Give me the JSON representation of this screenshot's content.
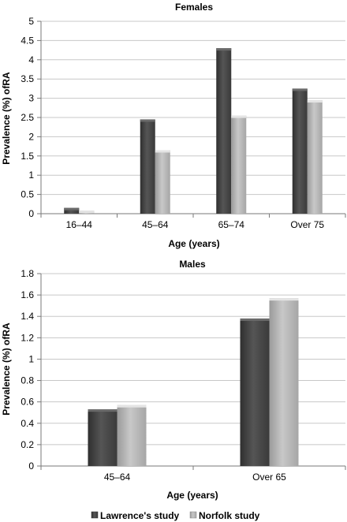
{
  "chart_data": [
    {
      "type": "bar",
      "title": "Females",
      "categories": [
        "16–44",
        "45–64",
        "65–74",
        "Over 75"
      ],
      "series": [
        {
          "name": "Lawrence's study",
          "values": [
            0.15,
            2.45,
            4.3,
            3.25
          ]
        },
        {
          "name": "Norfolk study",
          "values": [
            0.08,
            1.65,
            2.55,
            2.95
          ]
        }
      ],
      "xlabel": "Age (years)",
      "ylabel": "Prevalence (%) ofRA",
      "ylim": [
        0,
        5
      ],
      "yticks": [
        "0",
        "0.5",
        "1",
        "1.5",
        "2",
        "2.5",
        "3",
        "3.5",
        "4",
        "4.5",
        "5"
      ],
      "grid": true
    },
    {
      "type": "bar",
      "title": "Males",
      "categories": [
        "45–64",
        "Over 65"
      ],
      "series": [
        {
          "name": "Lawrence's study",
          "values": [
            0.53,
            1.38
          ]
        },
        {
          "name": "Norfolk study",
          "values": [
            0.57,
            1.57
          ]
        }
      ],
      "xlabel": "Age (years)",
      "ylabel": "Prevalence (%) ofRA",
      "ylim": [
        0,
        1.8
      ],
      "yticks": [
        "0",
        "0.2",
        "0.4",
        "0.6",
        "0.8",
        "1",
        "1.2",
        "1.4",
        "1.6",
        "1.8"
      ],
      "grid": true
    }
  ],
  "legend": {
    "placement": "bottom",
    "items": [
      "Lawrence's study",
      "Norfolk study"
    ]
  },
  "colors": {
    "lawrence": "#4a4a4a",
    "norfolk": "#b5b5b5",
    "grid": "#c8c8c8",
    "axis": "#7a7a7a"
  }
}
